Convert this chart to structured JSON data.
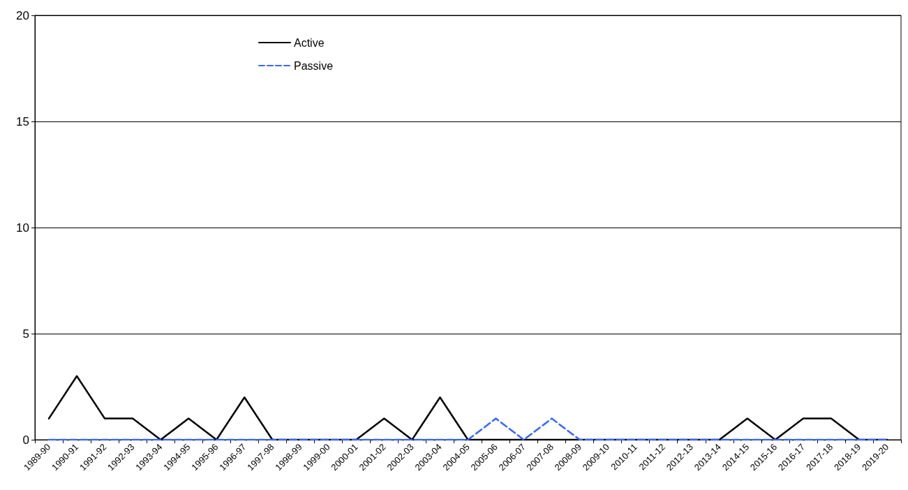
{
  "chart_data": {
    "type": "line",
    "categories": [
      "1989-90",
      "1990-91",
      "1991-92",
      "1992-93",
      "1993-94",
      "1994-95",
      "1995-96",
      "1996-97",
      "1997-98",
      "1998-99",
      "1999-00",
      "2000-01",
      "2001-02",
      "2002-03",
      "2003-04",
      "2004-05",
      "2005-06",
      "2006-07",
      "2007-08",
      "2008-09",
      "2009-10",
      "2010-11",
      "2011-12",
      "2012-13",
      "2013-14",
      "2014-15",
      "2015-16",
      "2016-17",
      "2017-18",
      "2018-19",
      "2019-20"
    ],
    "series": [
      {
        "name": "Active",
        "color": "#000000",
        "line_style": "solid",
        "values": [
          1,
          3,
          1,
          1,
          0,
          1,
          0,
          2,
          0,
          0,
          0,
          0,
          1,
          0,
          2,
          0,
          0,
          0,
          0,
          0,
          0,
          0,
          0,
          0,
          0,
          1,
          0,
          1,
          1,
          0,
          0
        ]
      },
      {
        "name": "Passive",
        "color": "#3366ff",
        "line_style": "dashed",
        "values": [
          0,
          0,
          0,
          0,
          0,
          0,
          0,
          0,
          0,
          0,
          0,
          0,
          0,
          0,
          0,
          0,
          1,
          0,
          1,
          0,
          0,
          0,
          0,
          0,
          0,
          0,
          0,
          0,
          0,
          0,
          0
        ]
      }
    ],
    "ylim": [
      0,
      20
    ],
    "yticks": [
      0,
      5,
      10,
      15,
      20
    ],
    "grid": "y",
    "legend": "top left",
    "marker": "none"
  }
}
